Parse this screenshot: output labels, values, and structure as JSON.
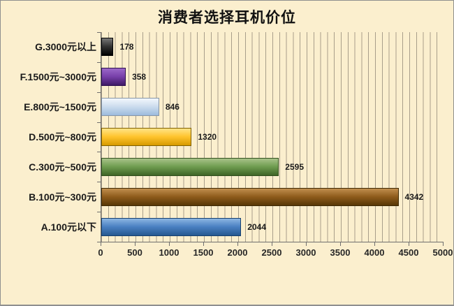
{
  "title": "消费者选择耳机价位",
  "colors": {
    "background": "#FBEFCE",
    "gridline": "#A89E8A",
    "axis": "#6E6E6E",
    "text": "#1A1A1A",
    "frame_border": "#8F8F8F"
  },
  "chart_data": {
    "type": "bar",
    "orientation": "horizontal",
    "title": "消费者选择耳机价位",
    "categories": [
      "G.3000元以上",
      "F.1500元~3000元",
      "E.800元~1500元",
      "D.500元~800元",
      "C.300元~500元",
      "B.100元~300元",
      "A.100元以下"
    ],
    "values": [
      178,
      358,
      846,
      1320,
      2595,
      4342,
      2044
    ],
    "data_labels": [
      "178",
      "358",
      "846",
      "1320",
      "2595",
      "4342",
      "2044"
    ],
    "xlabel": "",
    "ylabel": "",
    "xlim": [
      0,
      5000
    ],
    "x_ticks": [
      "0",
      "500",
      "1000",
      "1500",
      "2000",
      "2500",
      "3000",
      "3500",
      "4000",
      "4500",
      "5000"
    ],
    "minor_gridline_step": 100,
    "grid": true,
    "legend": false,
    "bar_colors": [
      {
        "name": "black",
        "top": "#777777",
        "mid": "#333333",
        "bottom": "#000000",
        "border": "#000000"
      },
      {
        "name": "purple",
        "top": "#9A68C8",
        "mid": "#7840AA",
        "bottom": "#3F1A66",
        "border": "#2E1050"
      },
      {
        "name": "pale-blue",
        "top": "#F2F7FC",
        "mid": "#CCDCEE",
        "bottom": "#9CBBDD",
        "border": "#8796A6"
      },
      {
        "name": "gold",
        "top": "#FFE488",
        "mid": "#FFC42E",
        "bottom": "#D79A00",
        "border": "#7F6000"
      },
      {
        "name": "green",
        "top": "#A8C289",
        "mid": "#6F9D50",
        "bottom": "#3F6526",
        "border": "#33511E"
      },
      {
        "name": "brown",
        "top": "#C08E4E",
        "mid": "#8F5C1C",
        "bottom": "#573706",
        "border": "#3F2A05"
      },
      {
        "name": "blue",
        "top": "#8CB6E2",
        "mid": "#4A80C2",
        "bottom": "#265890",
        "border": "#17406E"
      }
    ]
  }
}
